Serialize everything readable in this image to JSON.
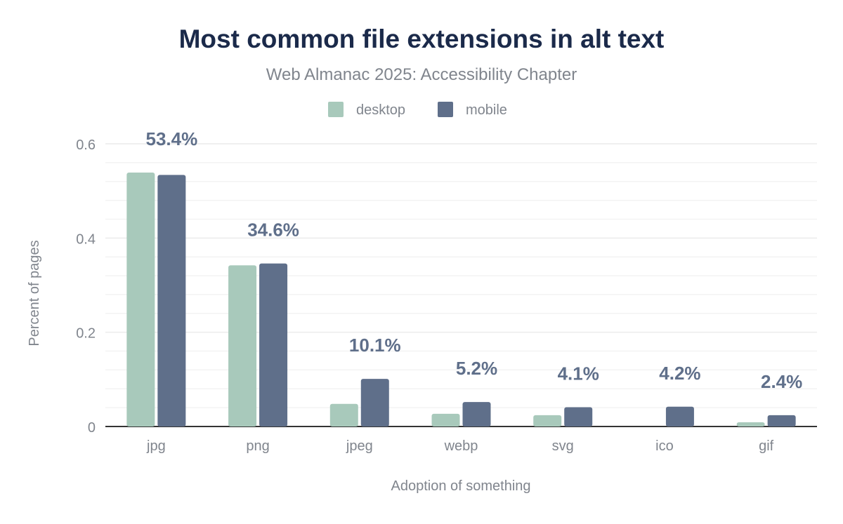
{
  "chart_data": {
    "type": "bar",
    "title": "Most common file extensions in alt text",
    "subtitle": "Web Almanac 2025: Accessibility Chapter",
    "xlabel": "Adoption of something",
    "ylabel": "Percent of pages",
    "ylim": [
      0,
      0.6
    ],
    "yticks": [
      "0",
      "0.2",
      "0.4",
      "0.6"
    ],
    "grid": true,
    "legend_placement": "top",
    "categories": [
      "jpg",
      "png",
      "jpeg",
      "webp",
      "svg",
      "ico",
      "gif"
    ],
    "series": [
      {
        "name": "desktop",
        "color": "#a8c9bb",
        "values": [
          0.539,
          0.342,
          0.048,
          0.027,
          0.024,
          0,
          0.009
        ]
      },
      {
        "name": "mobile",
        "color": "#5f6f8a",
        "values": [
          0.534,
          0.346,
          0.101,
          0.052,
          0.041,
          0.042,
          0.024
        ]
      }
    ],
    "data_labels": [
      "53.4%",
      "34.6%",
      "10.1%",
      "5.2%",
      "4.1%",
      "4.2%",
      "2.4%"
    ]
  }
}
